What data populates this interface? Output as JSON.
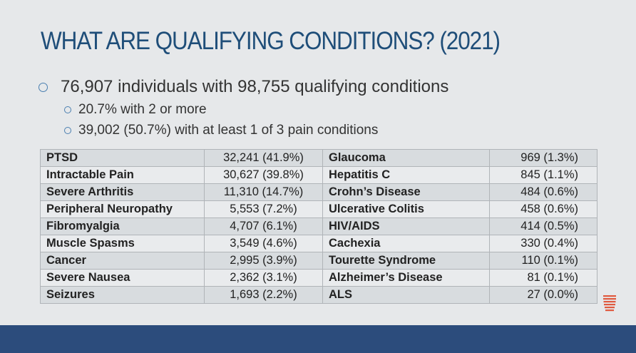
{
  "slide": {
    "title": "WHAT ARE QUALIFYING CONDITIONS? (2021)",
    "bullets": [
      "76,907 individuals with 98,755 qualifying conditions",
      "20.7% with 2 or more",
      "39,002 (50.7%) with at least 1 of 3 pain conditions"
    ]
  },
  "table": {
    "rows": [
      {
        "left_name": "PTSD",
        "left_value": "32,241 (41.9%)",
        "right_name": "Glaucoma",
        "right_value": "969 (1.3%)"
      },
      {
        "left_name": "Intractable Pain",
        "left_value": "30,627 (39.8%)",
        "right_name": "Hepatitis C",
        "right_value": "845 (1.1%)"
      },
      {
        "left_name": "Severe Arthritis",
        "left_value": "11,310 (14.7%)",
        "right_name": "Crohn’s Disease",
        "right_value": "484 (0.6%)"
      },
      {
        "left_name": "Peripheral Neuropathy",
        "left_value": "5,553 (7.2%)",
        "right_name": "Ulcerative Colitis",
        "right_value": "458 (0.6%)"
      },
      {
        "left_name": "Fibromyalgia",
        "left_value": "4,707 (6.1%)",
        "right_name": "HIV/AIDS",
        "right_value": "414 (0.5%)"
      },
      {
        "left_name": "Muscle Spasms",
        "left_value": "3,549 (4.6%)",
        "right_name": "Cachexia",
        "right_value": "330 (0.4%)"
      },
      {
        "left_name": "Cancer",
        "left_value": "2,995 (3.9%)",
        "right_name": "Tourette Syndrome",
        "right_value": "110 (0.1%)"
      },
      {
        "left_name": "Severe Nausea",
        "left_value": "2,362 (3.1%)",
        "right_name": "Alzheimer’s Disease",
        "right_value": "81 (0.1%)"
      },
      {
        "left_name": "Seizures",
        "left_value": "1,693 (2.2%)",
        "right_name": "ALS",
        "right_value": "27 (0.0%)"
      }
    ]
  },
  "colors": {
    "title": "#1f4e79",
    "footer_bar": "#2c4c7c",
    "logo": "#e05a40"
  },
  "icons": {
    "logo": "striped-logo-icon"
  }
}
